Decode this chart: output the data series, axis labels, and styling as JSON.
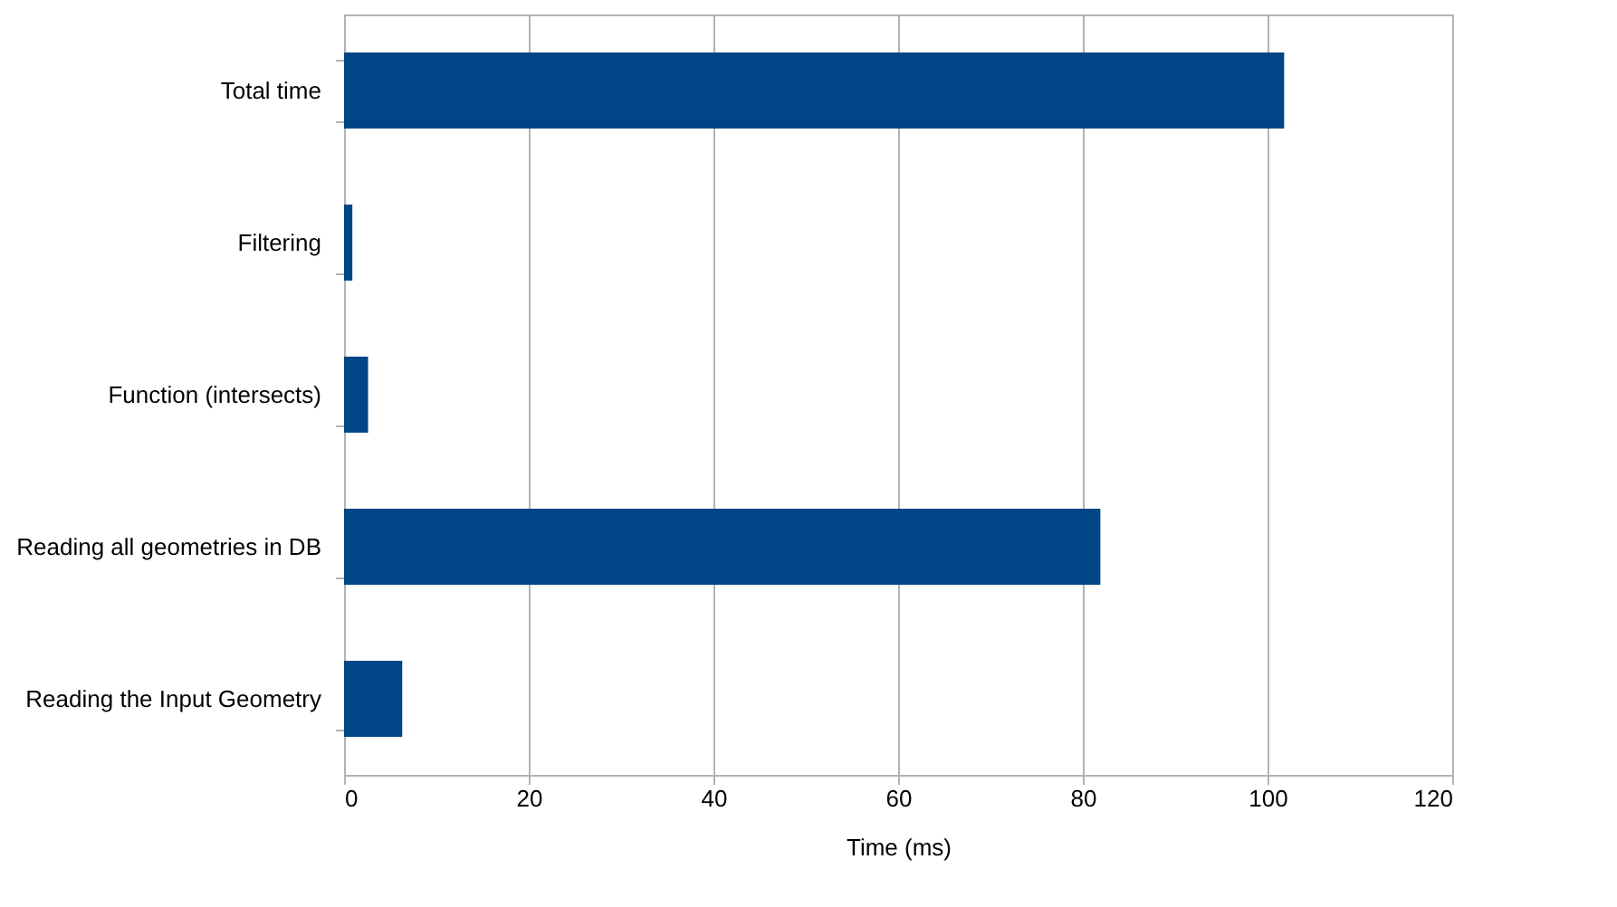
{
  "chart_data": {
    "type": "bar",
    "orientation": "horizontal",
    "xlabel": "Time (ms)",
    "categories": [
      "Total time",
      "Filtering",
      "Function (intersects)",
      "Reading all geometries in DB",
      "Reading the Input Geometry"
    ],
    "values": [
      101.8,
      0.9,
      2.6,
      81.9,
      6.3
    ],
    "color": "#004586",
    "xlim": [
      0,
      120
    ],
    "xticks": [
      0,
      20,
      40,
      60,
      80,
      100,
      120
    ],
    "grid": "x"
  }
}
